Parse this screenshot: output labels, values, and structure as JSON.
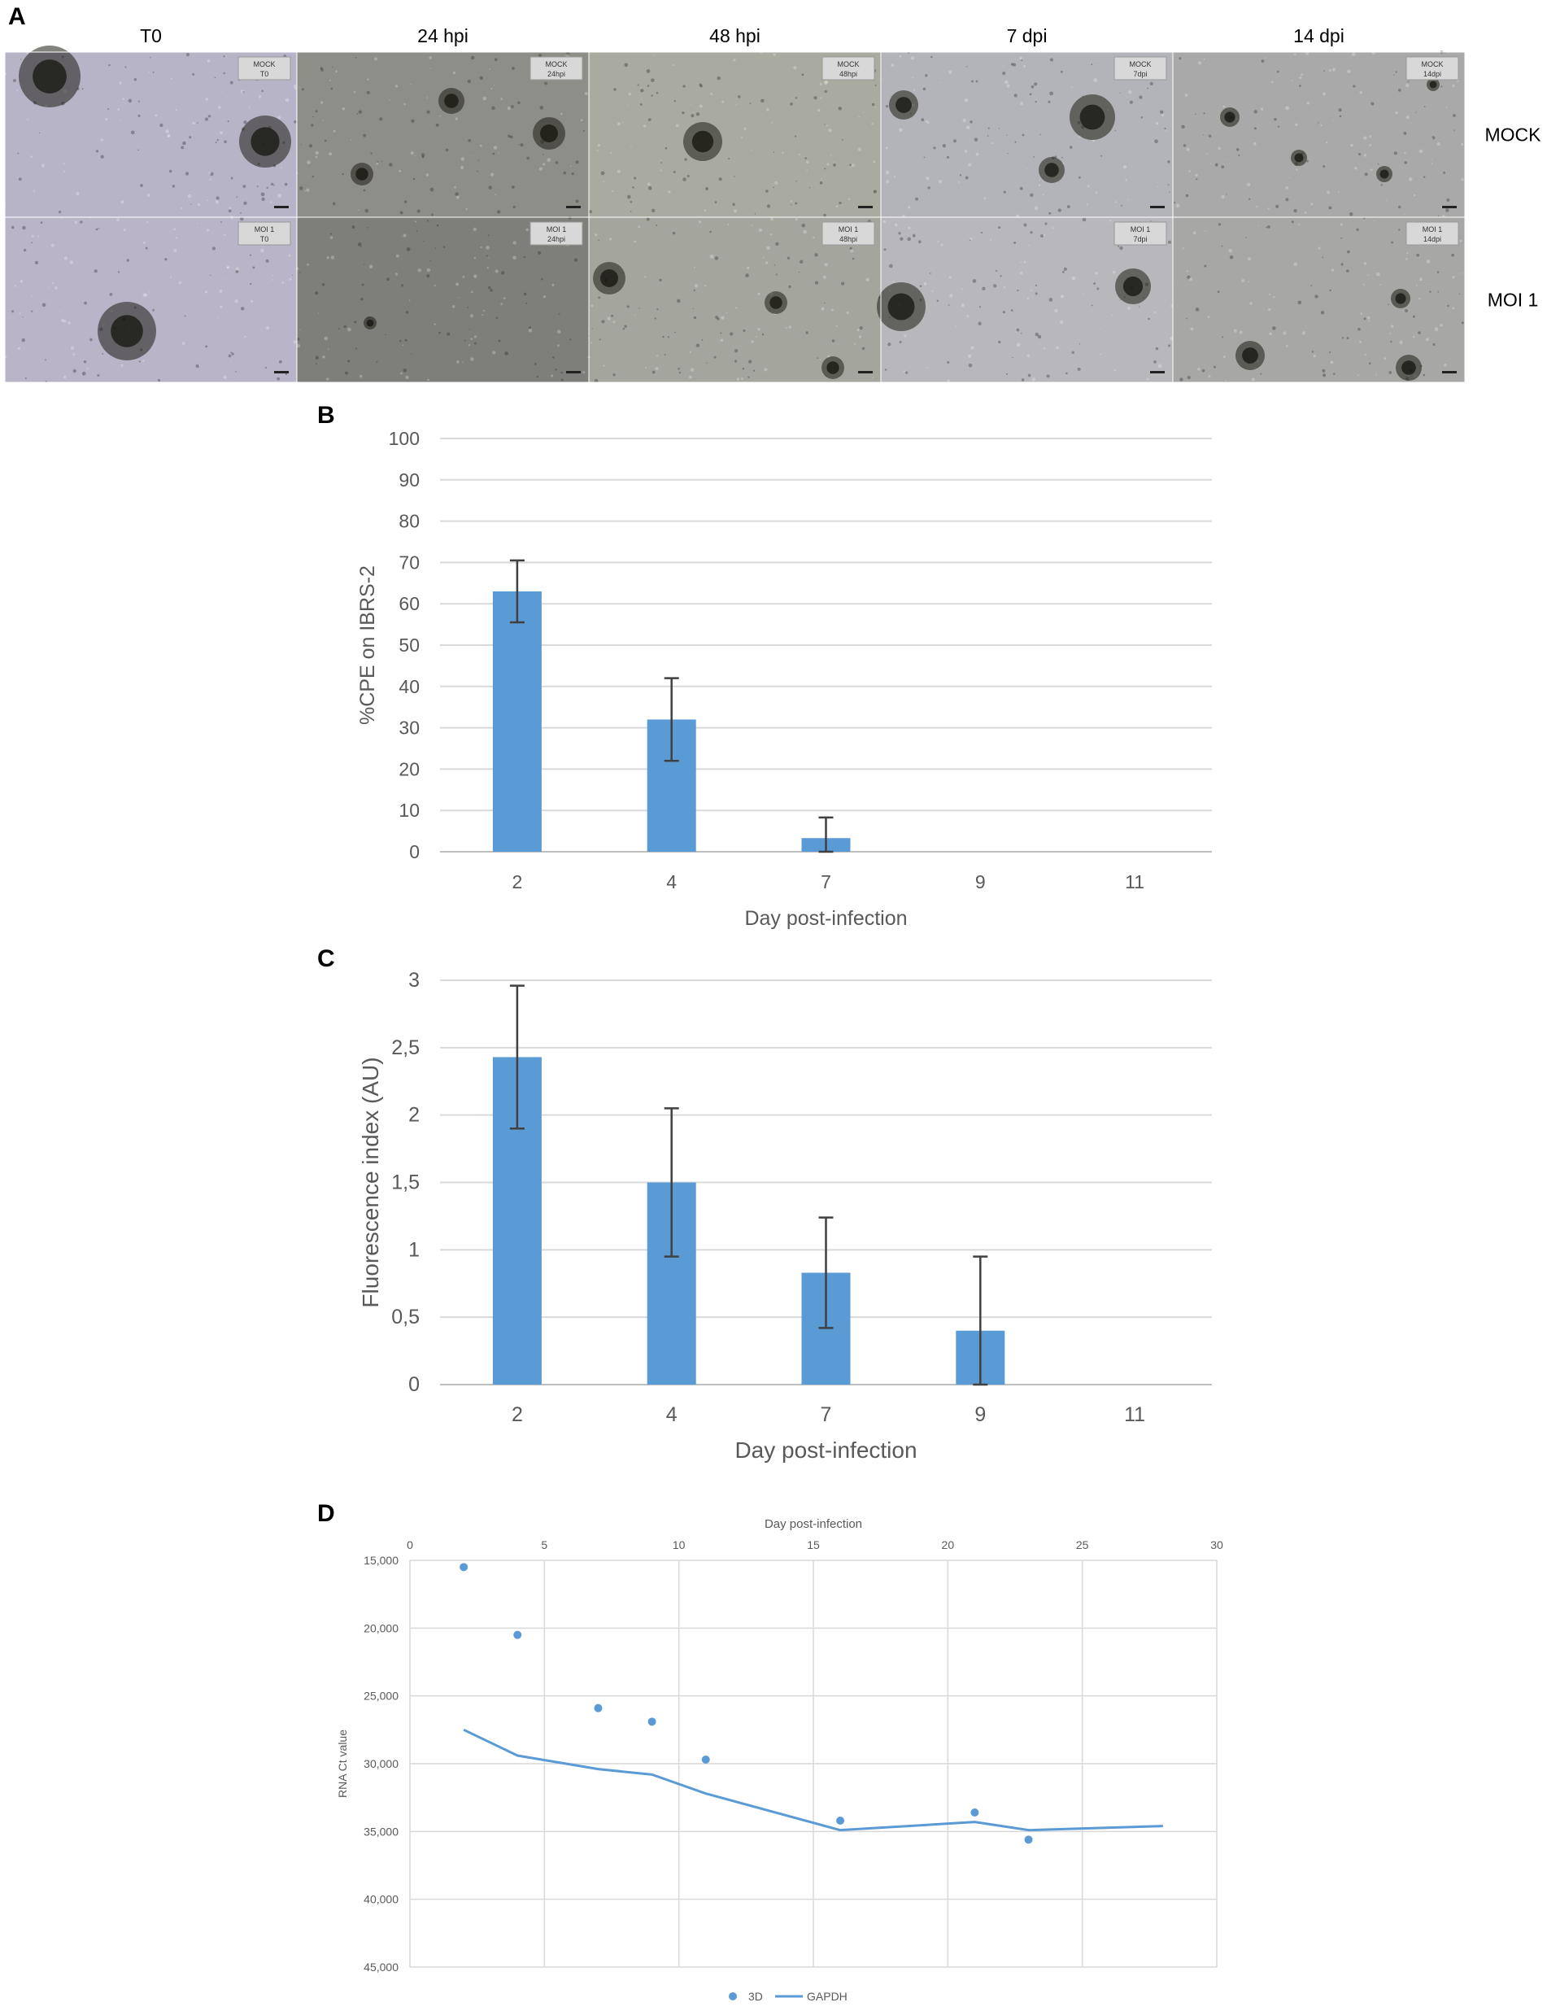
{
  "panel_a": {
    "letter": "A",
    "columns": [
      "T0",
      "24 hpi",
      "48 hpi",
      "7 dpi",
      "14 dpi"
    ],
    "rows": [
      "MOCK",
      "MOI 1"
    ],
    "tile_labels": [
      [
        "MOCK\nT0",
        "MOCK\n24hpi",
        "MOCK\n48hpi",
        "MOCK\n7dpi",
        "MOCK\n14dpi"
      ],
      [
        "MOI 1\nT0",
        "MOI 1\n24hpi",
        "MOI 1\n48hpi",
        "MOI 1\n7dpi",
        "MOI 1\n14dpi"
      ]
    ]
  },
  "chart_data": [
    {
      "panel": "B",
      "type": "bar",
      "categories": [
        "2",
        "4",
        "7",
        "9",
        "11"
      ],
      "values": [
        63,
        32,
        3.3,
        0,
        0
      ],
      "errors": [
        7.5,
        10,
        5,
        0,
        0
      ],
      "xlabel": "Day post-infection",
      "ylabel": "%CPE on IBRS-2",
      "ylim": [
        0,
        100
      ],
      "yticks": [
        "0",
        "10",
        "20",
        "30",
        "40",
        "50",
        "60",
        "70",
        "80",
        "90",
        "100"
      ],
      "grid": true,
      "color": "#5b9bd5"
    },
    {
      "panel": "C",
      "type": "bar",
      "categories": [
        "2",
        "4",
        "7",
        "9",
        "11"
      ],
      "values": [
        2.43,
        1.5,
        0.83,
        0.4,
        0
      ],
      "errors": [
        0.53,
        0.55,
        0.41,
        0.55,
        0
      ],
      "xlabel": "Day post-infection",
      "ylabel": "Fluorescence index (AU)",
      "ylim": [
        0,
        3
      ],
      "yticks": [
        "0",
        "0,5",
        "1",
        "1,5",
        "2",
        "2,5",
        "3"
      ],
      "grid": true,
      "color": "#5b9bd5"
    },
    {
      "panel": "D",
      "type": "scatter",
      "xlabel": "Day post-infection",
      "ylabel": "RNA Ct value",
      "xlim": [
        0,
        30
      ],
      "xticks": [
        "0",
        "5",
        "10",
        "15",
        "20",
        "25",
        "30"
      ],
      "ylim": [
        15000,
        45000
      ],
      "y_inverted": true,
      "yticks": [
        "15,000",
        "20,000",
        "25,000",
        "30,000",
        "35,000",
        "40,000",
        "45,000"
      ],
      "x_axis_position": "top",
      "grid": true,
      "legend_position": "bottom",
      "series": [
        {
          "name": "3D",
          "kind": "scatter",
          "color": "#5b9bd5",
          "x": [
            2,
            4,
            7,
            9,
            11,
            16,
            21,
            23
          ],
          "y": [
            15500,
            20500,
            25900,
            26900,
            29700,
            34200,
            33600,
            35600
          ]
        },
        {
          "name": "GAPDH",
          "kind": "line",
          "color": "#5b9bd5",
          "x": [
            2,
            4,
            7,
            9,
            11,
            16,
            21,
            23,
            28
          ],
          "y": [
            27500,
            29400,
            30400,
            30800,
            32200,
            34900,
            34300,
            34900,
            34600
          ]
        }
      ]
    }
  ]
}
